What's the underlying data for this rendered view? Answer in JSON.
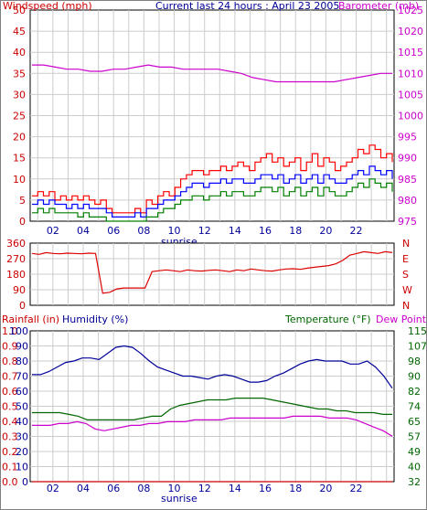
{
  "colors": {
    "windspeed_gust": "#ff0000",
    "windspeed_avg": "#0000ff",
    "windspeed_low": "#008000",
    "barometer": "#cc00cc",
    "wind_direction": "#dd0000",
    "rainfall": "#cc0000",
    "humidity": "#000099",
    "temperature": "#006600",
    "dew_point": "#cc00cc",
    "frame": "#000000",
    "grid": "#cccccc"
  },
  "chart_data": [
    {
      "type": "line",
      "title": "Current last 24 hours : April 23 2005",
      "left_axis_label": "Windspeed (mph)",
      "right_axis_label": "Barometer (mb)",
      "left_ticks": [
        "0",
        "5",
        "10",
        "15",
        "20",
        "25",
        "30",
        "35",
        "40",
        "45",
        "50"
      ],
      "right_ticks": [
        "975",
        "980",
        "985",
        "990",
        "995",
        "1000",
        "1005",
        "1010",
        "1015",
        "1020",
        "1025"
      ],
      "x_ticks": [
        "02",
        "04",
        "06",
        "08",
        "10",
        "12",
        "14",
        "16",
        "18",
        "20",
        "22"
      ],
      "x_annotation": "sunrise",
      "ylim": [
        0,
        50
      ],
      "y2lim": [
        975,
        1025
      ],
      "series": [
        {
          "color_key": "windspeed_gust",
          "axis": "left",
          "values": [
            6,
            7,
            6,
            7,
            5,
            6,
            5,
            6,
            5,
            6,
            5,
            4,
            5,
            3,
            2,
            2,
            2,
            2,
            3,
            2,
            5,
            4,
            6,
            7,
            6,
            8,
            10,
            11,
            12,
            12,
            11,
            12,
            12,
            13,
            12,
            13,
            14,
            13,
            12,
            14,
            15,
            16,
            14,
            15,
            13,
            14,
            15,
            12,
            14,
            16,
            13,
            15,
            14,
            12,
            13,
            14,
            15,
            17,
            16,
            18,
            17,
            15,
            16,
            14
          ]
        },
        {
          "color_key": "windspeed_avg",
          "axis": "left",
          "values": [
            4,
            5,
            4,
            5,
            4,
            4,
            3,
            4,
            3,
            4,
            3,
            3,
            3,
            2,
            1,
            1,
            1,
            1,
            2,
            1,
            3,
            3,
            4,
            5,
            5,
            6,
            7,
            8,
            9,
            9,
            8,
            9,
            9,
            10,
            9,
            10,
            10,
            9,
            9,
            10,
            11,
            11,
            10,
            11,
            9,
            10,
            11,
            9,
            10,
            11,
            9,
            11,
            10,
            9,
            9,
            10,
            11,
            12,
            11,
            13,
            12,
            11,
            12,
            10
          ]
        },
        {
          "color_key": "windspeed_low",
          "axis": "left",
          "values": [
            2,
            3,
            2,
            3,
            2,
            2,
            2,
            2,
            1,
            2,
            1,
            1,
            1,
            0,
            0,
            0,
            0,
            0,
            0,
            0,
            1,
            1,
            2,
            3,
            3,
            4,
            5,
            5,
            6,
            6,
            5,
            6,
            6,
            7,
            6,
            7,
            7,
            6,
            6,
            7,
            8,
            8,
            7,
            8,
            6,
            7,
            8,
            6,
            7,
            8,
            6,
            8,
            7,
            6,
            6,
            7,
            8,
            9,
            8,
            10,
            9,
            8,
            9,
            7
          ]
        },
        {
          "color_key": "barometer",
          "axis": "right",
          "values": [
            1012,
            1012,
            1011.5,
            1011,
            1011,
            1010.5,
            1010.5,
            1011,
            1011,
            1011.5,
            1012,
            1011.5,
            1011.5,
            1011,
            1011,
            1011,
            1011,
            1010.5,
            1010,
            1009,
            1008.5,
            1008,
            1008,
            1008,
            1008,
            1008,
            1008,
            1008.5,
            1009,
            1009.5,
            1010,
            1010
          ]
        }
      ]
    },
    {
      "type": "line",
      "left_ticks": [
        "0",
        "90",
        "180",
        "270",
        "360"
      ],
      "right_ticks": [
        "N",
        "W",
        "S",
        "E",
        "N"
      ],
      "ylim": [
        0,
        360
      ],
      "series": [
        {
          "color_key": "wind_direction",
          "axis": "left",
          "values": [
            300,
            295,
            305,
            300,
            298,
            302,
            300,
            298,
            302,
            300,
            70,
            75,
            95,
            100,
            100,
            100,
            100,
            195,
            200,
            205,
            200,
            195,
            205,
            200,
            198,
            202,
            205,
            200,
            195,
            205,
            200,
            210,
            205,
            200,
            198,
            205,
            210,
            212,
            208,
            215,
            220,
            225,
            230,
            240,
            260,
            290,
            300,
            310,
            305,
            300,
            310,
            305
          ]
        }
      ]
    },
    {
      "type": "line",
      "left_axis_label_1": "Rainfall (in)",
      "left_axis_label_2": "Humidity (%)",
      "right_axis_label_1": "Temperature (°F)",
      "right_axis_label_2": "Dew Point",
      "x_ticks": [
        "02",
        "04",
        "06",
        "08",
        "10",
        "12",
        "14",
        "16",
        "18",
        "20",
        "22"
      ],
      "x_annotation": "sunrise",
      "rain_ticks": [
        "0.0",
        "0.1",
        "0.2",
        "0.3",
        "0.4",
        "0.5",
        "0.6",
        "0.7",
        "0.8",
        "0.9",
        "1.0"
      ],
      "humidity_ticks": [
        "0",
        "10",
        "20",
        "30",
        "40",
        "50",
        "60",
        "70",
        "80",
        "90",
        "100"
      ],
      "temp_ticks": [
        "32",
        "40",
        "49",
        "57",
        "65",
        "74",
        "82",
        "90",
        "98",
        "107",
        "115"
      ],
      "ylim": [
        0,
        100
      ],
      "temp_lim": [
        32,
        115
      ],
      "series": [
        {
          "color_key": "rainfall",
          "axis": "rain",
          "values": [
            0,
            0,
            0,
            0,
            0,
            0,
            0,
            0,
            0,
            0,
            0,
            0,
            0,
            0,
            0,
            0,
            0,
            0,
            0,
            0,
            0,
            0,
            0,
            0
          ]
        },
        {
          "color_key": "humidity",
          "axis": "humidity",
          "values": [
            71,
            71,
            73,
            76,
            79,
            80,
            82,
            82,
            81,
            85,
            89,
            90,
            89,
            85,
            80,
            76,
            74,
            72,
            70,
            70,
            69,
            68,
            70,
            71,
            70,
            68,
            66,
            66,
            67,
            70,
            72,
            75,
            78,
            80,
            81,
            80,
            80,
            80,
            78,
            78,
            80,
            76,
            70,
            62
          ]
        },
        {
          "color_key": "temperature",
          "axis": "temp",
          "values": [
            70,
            70,
            70,
            70,
            69,
            68,
            66,
            66,
            66,
            66,
            66,
            66,
            67,
            68,
            68,
            72,
            74,
            75,
            76,
            77,
            77,
            77,
            78,
            78,
            78,
            78,
            77,
            76,
            75,
            74,
            73,
            72,
            72,
            71,
            71,
            70,
            70,
            70,
            69,
            69
          ]
        },
        {
          "color_key": "dew_point",
          "axis": "temp",
          "values": [
            63,
            63,
            63,
            64,
            64,
            65,
            64,
            61,
            60,
            61,
            62,
            63,
            63,
            64,
            64,
            65,
            65,
            65,
            66,
            66,
            66,
            66,
            67,
            67,
            67,
            67,
            67,
            67,
            67,
            68,
            68,
            68,
            68,
            67,
            67,
            67,
            66,
            64,
            62,
            60,
            57
          ]
        }
      ]
    }
  ]
}
